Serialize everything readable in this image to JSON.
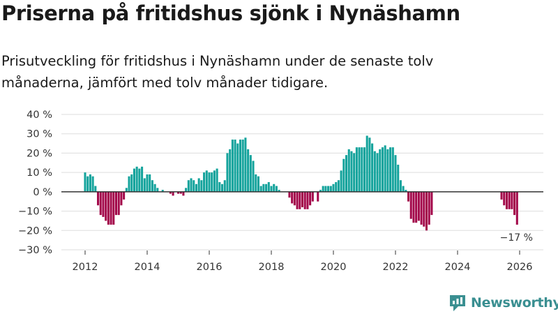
{
  "title": "Priserna på fritidshus sjönk i Nynäshamn",
  "subtitle": "Prisutveckling för fritidshus i Nynäshamn under de senaste tolv månaderna, jämfört med tolv månader tidigare.",
  "brand": {
    "name": "Newsworthy"
  },
  "colors": {
    "positive": "#14a39c",
    "negative": "#a3084a",
    "grid": "#dddddd",
    "zero": "#333333"
  },
  "chart_data": {
    "type": "bar",
    "x_start": "2012-01",
    "x_ticks": [
      2012,
      2014,
      2016,
      2018,
      2020,
      2022,
      2024,
      2026
    ],
    "y_ticks": [
      "40 %",
      "30 %",
      "20 %",
      "10 %",
      "0 %",
      "−10 %",
      "−20 %",
      "−30 %"
    ],
    "ylim": [
      -30,
      40
    ],
    "values": [
      10,
      8,
      9,
      8,
      3,
      -7,
      -12,
      -13,
      -15,
      -17,
      -17,
      -17,
      -12,
      -12,
      -7,
      -4,
      2,
      8,
      9,
      12,
      13,
      12,
      13,
      7,
      9,
      9,
      6,
      4,
      2,
      null,
      1,
      null,
      null,
      -1,
      -2,
      null,
      -1,
      -1,
      -2,
      2,
      6,
      7,
      6,
      4,
      7,
      6,
      10,
      11,
      10,
      10,
      11,
      12,
      5,
      4,
      6,
      20,
      22,
      27,
      27,
      25,
      27,
      27,
      28,
      22,
      19,
      16,
      9,
      8,
      3,
      4,
      4,
      5,
      3,
      4,
      3,
      1,
      null,
      null,
      null,
      -3,
      -6,
      -7,
      -9,
      -9,
      -8,
      -9,
      -9,
      -7,
      -5,
      null,
      -5,
      1,
      3,
      3,
      3,
      3,
      4,
      5,
      6,
      11,
      17,
      19,
      22,
      21,
      20,
      23,
      23,
      23,
      23,
      29,
      28,
      25,
      21,
      20,
      22,
      23,
      24,
      22,
      23,
      23,
      19,
      14,
      6,
      3,
      1,
      -5,
      -14,
      -16,
      -16,
      -15,
      -17,
      -18,
      -20,
      -17,
      -12,
      null,
      null,
      null,
      null,
      null,
      null,
      null,
      null,
      null,
      null,
      null,
      null,
      null,
      null,
      null,
      null,
      null,
      null,
      null,
      null,
      null,
      null,
      null,
      null,
      null,
      null,
      -4,
      -7,
      -9,
      -9,
      -9,
      -12,
      -17
    ],
    "last_label": "−17 %"
  }
}
